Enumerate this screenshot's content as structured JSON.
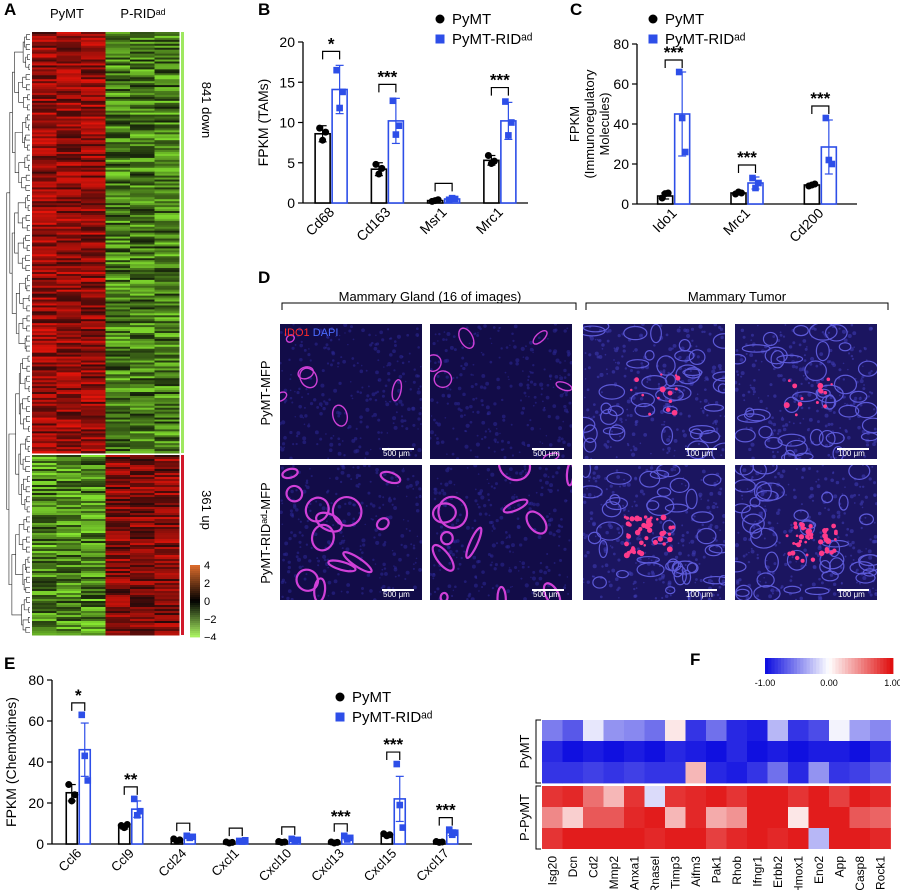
{
  "panelA": {
    "letter": "A",
    "col_labels": [
      "PyMT",
      "P-RIDᵃᵈ"
    ],
    "groups": [
      {
        "label": "841 down",
        "count": 841,
        "color": "#9fe860"
      },
      {
        "label": "361 up",
        "count": 361,
        "color": "#d1182a"
      }
    ],
    "colorbar": {
      "ticks": [
        "4",
        "2",
        "0",
        "−2",
        "−4"
      ],
      "min": -4,
      "max": 4,
      "colors": {
        "high": "#d86a2b",
        "mid": "#000000",
        "low": "#a8f060"
      }
    }
  },
  "panelB": {
    "letter": "B",
    "chart_data": {
      "type": "bar",
      "ylabel": "FPKM (TAMs)",
      "ylim": [
        0,
        20
      ],
      "yticks": [
        "0",
        "5",
        "10",
        "15",
        "20"
      ],
      "categories": [
        "Cd68",
        "Cd163",
        "Msr1",
        "Mrc1"
      ],
      "series": [
        {
          "name": "PyMT",
          "color": "#000000",
          "values": [
            8.6,
            4.2,
            0.3,
            5.3
          ],
          "err": [
            1.0,
            0.8,
            0.1,
            0.6
          ],
          "points": [
            [
              9.3,
              7.8,
              8.8
            ],
            [
              4.8,
              3.6,
              4.3
            ],
            [
              0.2,
              0.3,
              0.4
            ],
            [
              5.9,
              4.9,
              5.2
            ]
          ]
        },
        {
          "name": "PyMT-RIDᵃᵈ",
          "color": "#2d4ee8",
          "values": [
            14.1,
            10.2,
            0.5,
            10.2
          ],
          "err": [
            3.0,
            2.8,
            0.2,
            2.3
          ],
          "points": [
            [
              16.5,
              11.8,
              13.8
            ],
            [
              12.7,
              8.5,
              9.6
            ],
            [
              0.4,
              0.6,
              0.5
            ],
            [
              12.6,
              8.4,
              10.0
            ]
          ]
        }
      ],
      "significance": [
        "*",
        "***",
        "",
        "***"
      ],
      "legend": "top-right"
    }
  },
  "panelC": {
    "letter": "C",
    "chart_data": {
      "type": "bar",
      "ylabel_lines": [
        "FPKM",
        "(Immunoregulatory",
        "Molecules)"
      ],
      "ylim": [
        0,
        80
      ],
      "yticks": [
        "0",
        "20",
        "40",
        "60",
        "80"
      ],
      "categories": [
        "Ido1",
        "Mrc1",
        "Cd200"
      ],
      "series": [
        {
          "name": "PyMT",
          "color": "#000000",
          "values": [
            4.0,
            5.5,
            9.5
          ],
          "err": [
            1.5,
            0.8,
            0.8
          ],
          "points": [
            [
              3.0,
              5.2,
              5.5
            ],
            [
              5.0,
              6.0,
              5.5
            ],
            [
              9.0,
              9.5,
              10.0
            ]
          ]
        },
        {
          "name": "PyMT-RIDᵃᵈ",
          "color": "#2d4ee8",
          "values": [
            45,
            10.5,
            28.5
          ],
          "err": [
            21,
            3.0,
            13.5
          ],
          "points": [
            [
              66,
              43,
              26
            ],
            [
              13,
              8,
              10.5
            ],
            [
              43,
              22,
              20
            ]
          ]
        }
      ],
      "significance": [
        "***",
        "***",
        "***"
      ],
      "legend": "top-right"
    }
  },
  "panelD": {
    "letter": "D",
    "headers": [
      "Mammary Gland (16 of images)",
      "Mammary Tumor"
    ],
    "row_labels": [
      "PyMT-MFP",
      "PyMT-RIDᵃᵈ-MFP"
    ],
    "stain_labels": {
      "ido1": "IDO1",
      "dapi": "DAPI"
    },
    "scale_bars": [
      "500 μm",
      "500 μm",
      "100 μm",
      "100 μm"
    ]
  },
  "panelE": {
    "letter": "E",
    "chart_data": {
      "type": "bar",
      "ylabel": "FPKM (Chemokines)",
      "ylim": [
        0,
        80
      ],
      "yticks": [
        "0",
        "20",
        "40",
        "60",
        "80"
      ],
      "categories": [
        "Ccl6",
        "Ccl9",
        "Ccl24",
        "Cxcl1",
        "Cxcl10",
        "Cxcl13",
        "Cxcl15",
        "Cxcl17"
      ],
      "series": [
        {
          "name": "PyMT",
          "color": "#000000",
          "values": [
            25,
            8.5,
            2.0,
            0.8,
            1.0,
            0.8,
            4.5,
            1.0
          ],
          "err": [
            4,
            1.2,
            0.8,
            0.3,
            0.4,
            0.3,
            0.8,
            0.4
          ],
          "points": [
            [
              29,
              21,
              24
            ],
            [
              9,
              8,
              9.5
            ],
            [
              2.5,
              1.5,
              2
            ],
            [
              1,
              0.5,
              0.8
            ],
            [
              1.2,
              0.8,
              1
            ],
            [
              1,
              0.5,
              0.8
            ],
            [
              5,
              4,
              4.5
            ],
            [
              1.2,
              0.8,
              1
            ]
          ]
        },
        {
          "name": "PyMT-RIDᵃᵈ",
          "color": "#2d4ee8",
          "values": [
            46,
            17,
            3.5,
            1.5,
            2.0,
            3.0,
            22,
            5.5
          ],
          "err": [
            13,
            4,
            0.8,
            0.4,
            0.5,
            1.0,
            11,
            1.4
          ],
          "points": [
            [
              63,
              43,
              31
            ],
            [
              22,
              14,
              16
            ],
            [
              4,
              3,
              3.5
            ],
            [
              1.5,
              1.2,
              1.8
            ],
            [
              2.5,
              1.5,
              2
            ],
            [
              4,
              2.2,
              3
            ],
            [
              39,
              19,
              8
            ],
            [
              7,
              4.5,
              5.5
            ]
          ]
        }
      ],
      "significance": [
        "*",
        "**",
        "",
        "",
        "",
        "***",
        "***",
        "***"
      ],
      "legend": "top-right"
    }
  },
  "panelF": {
    "letter": "F",
    "chart_data": {
      "type": "heatmap",
      "columns": [
        "Isg20",
        "Dcn",
        "Cd2",
        "Mmp2",
        "Anxa1",
        "Rnasel",
        "Timp3",
        "Aifm3",
        "Pak1",
        "Rhob",
        "Ifngr1",
        "Erbb2",
        "Hmox1",
        "Eno2",
        "App",
        "Casp8",
        "Rock1"
      ],
      "row_groups": [
        {
          "label": "PyMT",
          "rows": 3
        },
        {
          "label": "P-PyMT",
          "rows": 3
        }
      ],
      "values": [
        [
          -0.55,
          -0.7,
          -0.1,
          -0.45,
          -0.5,
          -0.6,
          0.1,
          -0.85,
          -0.6,
          -0.9,
          -0.95,
          -0.3,
          -0.85,
          -0.75,
          -0.05,
          -0.4,
          -0.5
        ],
        [
          -0.9,
          -1.0,
          -0.95,
          -1.0,
          -0.95,
          -1.0,
          -0.9,
          -0.95,
          -1.0,
          -0.9,
          -1.0,
          -0.95,
          -1.0,
          -0.95,
          -0.95,
          -1.0,
          -0.9
        ],
        [
          -0.85,
          -0.85,
          -0.8,
          -0.85,
          -0.8,
          -0.85,
          -0.85,
          0.3,
          -0.9,
          -0.95,
          -0.85,
          -0.6,
          -0.9,
          -0.45,
          -0.85,
          -0.8,
          -0.7
        ],
        [
          0.85,
          0.9,
          0.6,
          0.3,
          0.85,
          -0.15,
          0.85,
          0.9,
          0.95,
          0.85,
          0.95,
          0.95,
          0.85,
          0.95,
          0.8,
          0.95,
          0.9
        ],
        [
          0.5,
          0.2,
          0.7,
          0.7,
          0.9,
          0.95,
          0.3,
          0.9,
          0.35,
          0.45,
          0.95,
          0.95,
          0.1,
          0.95,
          0.95,
          0.7,
          0.65
        ],
        [
          0.85,
          0.95,
          0.95,
          0.95,
          0.95,
          0.9,
          0.95,
          0.95,
          0.8,
          0.9,
          0.95,
          0.9,
          0.95,
          -0.3,
          0.95,
          0.95,
          0.9
        ]
      ],
      "colorbar": {
        "ticks": [
          "-1.00",
          "0.00",
          "1.00"
        ],
        "min": -1,
        "max": 1,
        "colors": {
          "low": "#1010e0",
          "mid": "#ffffff",
          "high": "#e01010"
        }
      }
    }
  }
}
